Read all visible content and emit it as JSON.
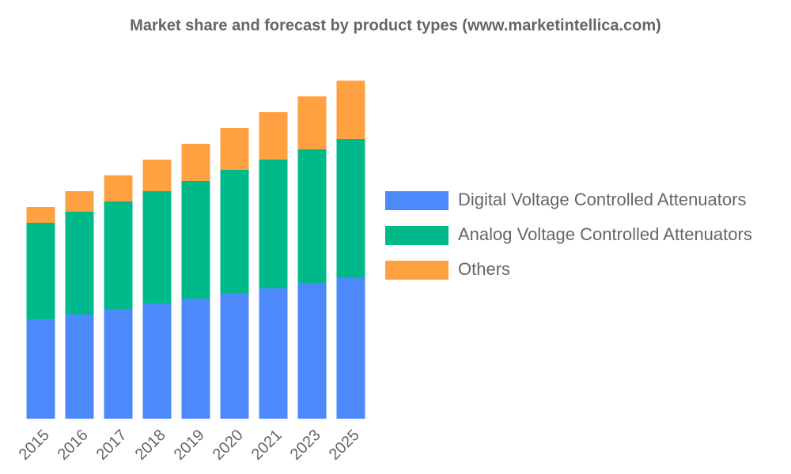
{
  "chart_data": {
    "type": "stacked_bar",
    "title": "Market share and forecast by product types (www.marketintellica.com)",
    "categories": [
      "2015",
      "2016",
      "2017",
      "2018",
      "2019",
      "2020",
      "2021",
      "2023",
      "2025"
    ],
    "series": [
      {
        "name": "Digital Voltage Controlled Attenuators",
        "color": "#4e89fb",
        "values": [
          12.6,
          13.2,
          13.9,
          14.6,
          15.2,
          15.9,
          16.5,
          17.2,
          17.9
        ]
      },
      {
        "name": "Analog Voltage Controlled Attenuators",
        "color": "#00b98a",
        "values": [
          12.2,
          13.0,
          13.6,
          14.2,
          14.9,
          15.6,
          16.3,
          16.9,
          17.5
        ]
      },
      {
        "name": "Others",
        "color": "#ffa140",
        "values": [
          2.0,
          2.6,
          3.3,
          4.0,
          4.7,
          5.3,
          6.0,
          6.7,
          7.4
        ]
      }
    ],
    "ylim": [
      0,
      45
    ],
    "legend": "right"
  }
}
